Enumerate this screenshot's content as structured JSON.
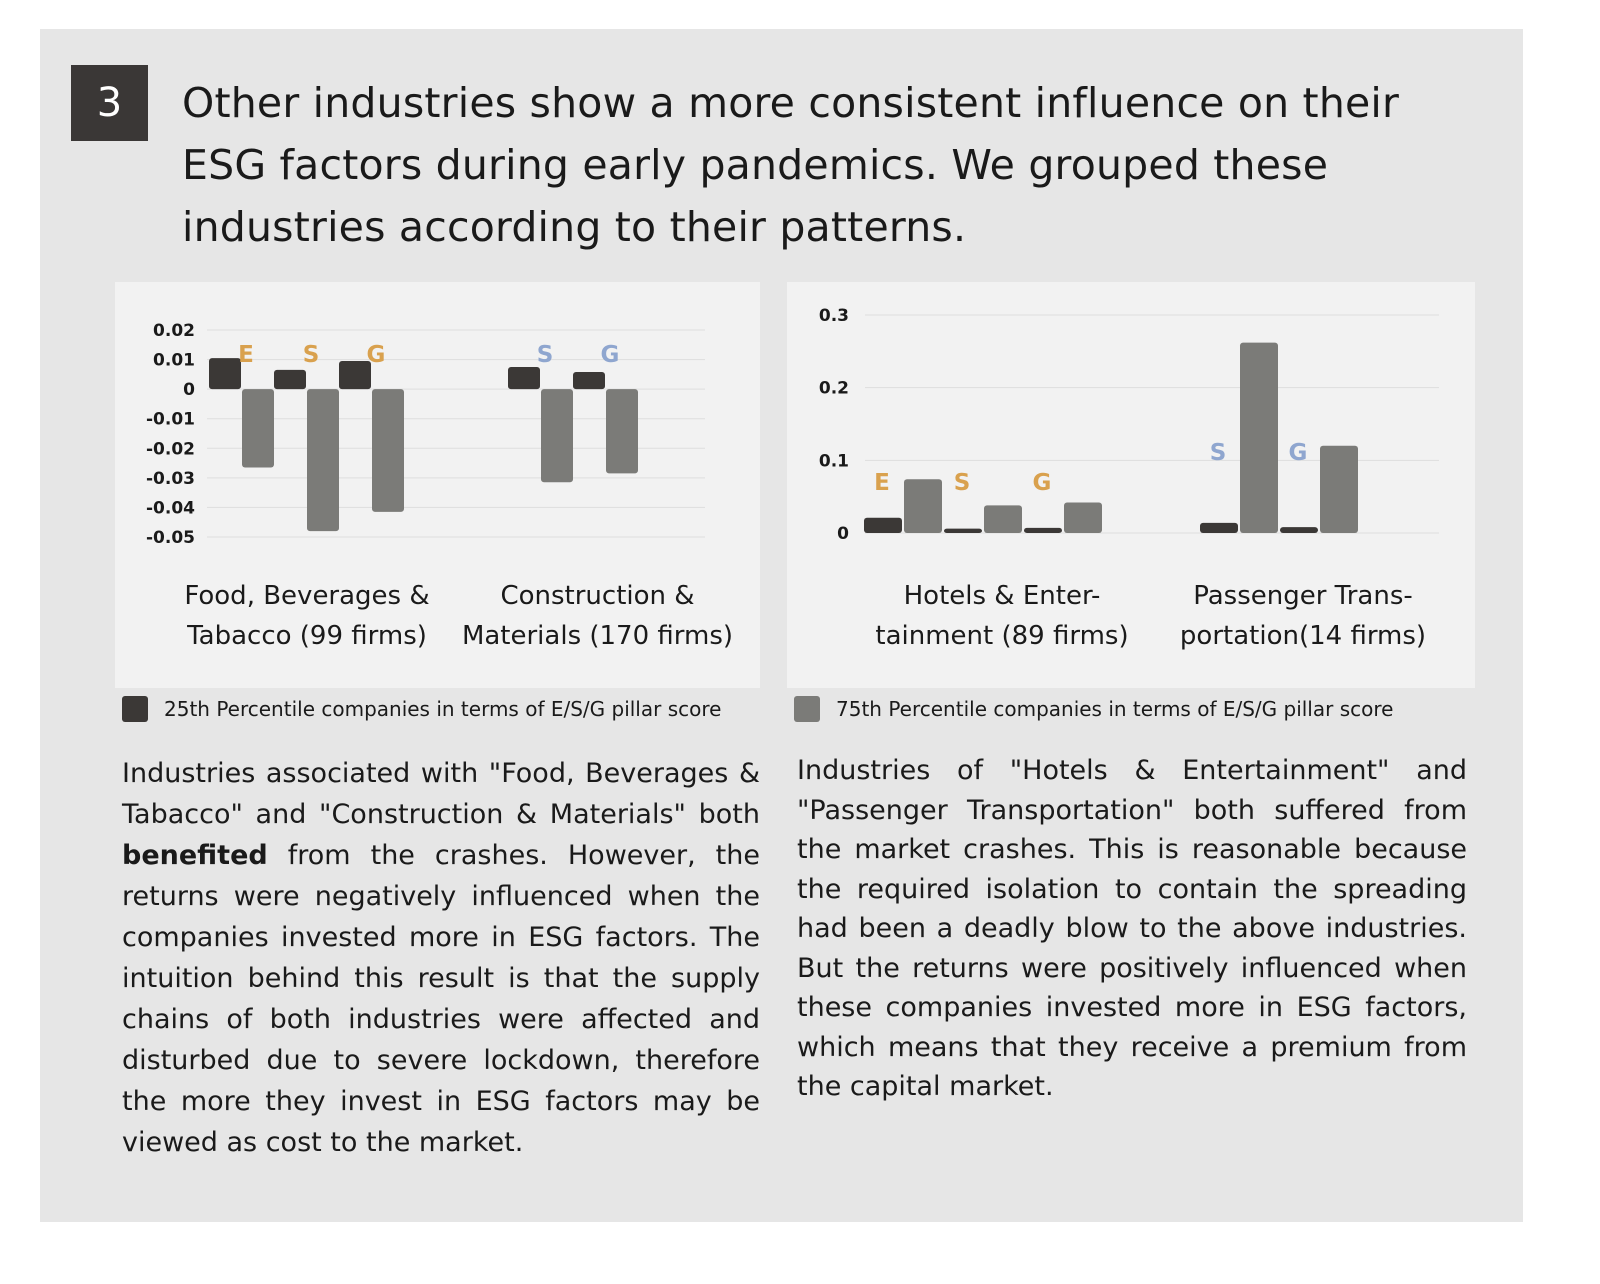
{
  "badge": "3",
  "headline": "Other industries show a more consistent influence on their ESG factors during early pandemics. We grouped these industries according to their patterns.",
  "colors": {
    "p25": "#3b3836",
    "p75": "#7b7b78",
    "letter_orange": "#d9a14e",
    "letter_blue": "#8fa6cf"
  },
  "legend": {
    "p25": "25th Percentile companies in terms of E/S/G pillar score",
    "p75": "75th Percentile companies in terms of E/S/G pillar score"
  },
  "chart_data": [
    {
      "type": "bar",
      "ylim": [
        -0.05,
        0.02
      ],
      "yticks": [
        "0.02",
        "0.01",
        "0",
        "-0.01",
        "-0.02",
        "-0.03",
        "-0.04",
        "-0.05"
      ],
      "categories": [
        "Food, Beverages &\nTabacco (99 firms)",
        "Construction &\nMaterials (170 firms)"
      ],
      "groups": [
        {
          "letters": [
            "E",
            "S",
            "G"
          ],
          "letter_color": "orange",
          "p25": [
            0.0105,
            0.0065,
            0.0095
          ],
          "p75": [
            -0.0265,
            -0.048,
            -0.0415
          ]
        },
        {
          "letters": [
            "S",
            "G"
          ],
          "letter_color": "blue",
          "p25": [
            0.0075,
            0.0058
          ],
          "p75": [
            -0.0315,
            -0.0285
          ]
        }
      ]
    },
    {
      "type": "bar",
      "ylim": [
        0,
        0.3
      ],
      "yticks": [
        "0.3",
        "0.2",
        "0.1",
        "0"
      ],
      "categories": [
        "Hotels & Enter-\ntainment (89 firms)",
        "Passenger Trans-\nportation(14 firms)"
      ],
      "groups": [
        {
          "letters": [
            "E",
            "S",
            "G"
          ],
          "letter_color": "orange",
          "p25": [
            0.021,
            0.006,
            0.007
          ],
          "p75": [
            0.074,
            0.038,
            0.042
          ]
        },
        {
          "letters": [
            "S",
            "G"
          ],
          "letter_color": "blue",
          "p25": [
            0.014,
            0.008
          ],
          "p75": [
            0.262,
            0.12
          ]
        }
      ]
    }
  ],
  "paragraphs": {
    "left_pre": "Industries associated with \"Food, Beverages & Tabacco\" and \"Construction & Materials\" both ",
    "left_bold": "benefited",
    "left_post": " from the crashes. However, the returns were negatively influenced when the companies invested more in ESG factors. The intuition behind this result is that the supply chains of both industries were affected and disturbed due to severe lockdown, therefore the more they invest in ESG factors may be viewed as cost to the market.",
    "right": "Industries of \"Hotels & Entertainment\" and \"Passenger Transportation\" both suffered from the market crashes. This is reasonable because the required isolation to contain the spreading had been a deadly blow to the above industries. But the returns were positively influenced when these companies invested more in ESG factors, which means that they receive a premium from the capital market."
  }
}
